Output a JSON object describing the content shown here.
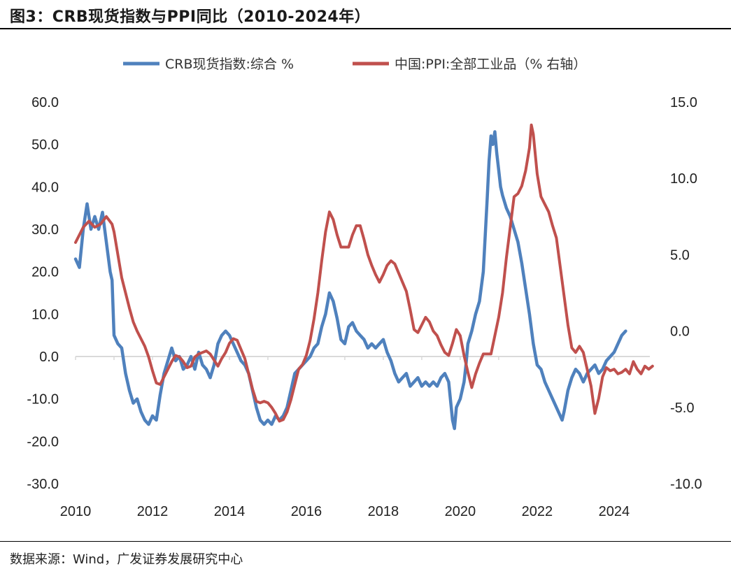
{
  "header": {
    "title": "图3：CRB现货指数与PPI同比（2010-2024年）"
  },
  "footer": {
    "source": "数据来源：Wind，广发证券发展研究中心"
  },
  "colors": {
    "crb": "#4f81bd",
    "ppi": "#c0504d",
    "axis": "#d9d9d9"
  },
  "chart_data": {
    "type": "line",
    "title": "CRB现货指数与PPI同比（2010-2024年）",
    "legend_position": "top",
    "x_ticks": [
      "2010",
      "2012",
      "2014",
      "2016",
      "2018",
      "2020",
      "2022",
      "2024"
    ],
    "y_left": {
      "range": [
        -30,
        60
      ],
      "ticks": [
        "60.0",
        "50.0",
        "40.0",
        "30.0",
        "20.0",
        "10.0",
        "0.0",
        "-10.0",
        "-20.0",
        "-30.0"
      ]
    },
    "y_right": {
      "range": [
        -10,
        15
      ],
      "ticks": [
        "15.0",
        "10.0",
        "5.0",
        "0.0",
        "-5.0",
        "-10.0"
      ]
    },
    "series": [
      {
        "name": "CRB现货指数:综合 %",
        "axis": "left",
        "color": "#4f81bd",
        "points": [
          [
            2010.0,
            23
          ],
          [
            2010.1,
            21
          ],
          [
            2010.2,
            30
          ],
          [
            2010.3,
            36
          ],
          [
            2010.4,
            30
          ],
          [
            2010.5,
            33
          ],
          [
            2010.6,
            30
          ],
          [
            2010.7,
            34
          ],
          [
            2010.8,
            27
          ],
          [
            2010.9,
            20
          ],
          [
            2010.95,
            18
          ],
          [
            2011.0,
            5
          ],
          [
            2011.1,
            3
          ],
          [
            2011.2,
            2
          ],
          [
            2011.3,
            -4
          ],
          [
            2011.4,
            -8
          ],
          [
            2011.5,
            -11
          ],
          [
            2011.6,
            -10
          ],
          [
            2011.7,
            -13
          ],
          [
            2011.8,
            -15
          ],
          [
            2011.9,
            -16
          ],
          [
            2012.0,
            -14
          ],
          [
            2012.1,
            -15
          ],
          [
            2012.2,
            -9
          ],
          [
            2012.3,
            -4
          ],
          [
            2012.4,
            -1
          ],
          [
            2012.5,
            2
          ],
          [
            2012.6,
            -1
          ],
          [
            2012.7,
            0
          ],
          [
            2012.8,
            -3
          ],
          [
            2012.9,
            -2
          ],
          [
            2013.0,
            0
          ],
          [
            2013.1,
            -3
          ],
          [
            2013.2,
            1
          ],
          [
            2013.3,
            -2
          ],
          [
            2013.4,
            -3
          ],
          [
            2013.5,
            -5
          ],
          [
            2013.6,
            -2
          ],
          [
            2013.7,
            3
          ],
          [
            2013.8,
            5
          ],
          [
            2013.9,
            6
          ],
          [
            2014.0,
            5
          ],
          [
            2014.1,
            3
          ],
          [
            2014.2,
            1
          ],
          [
            2014.3,
            -1
          ],
          [
            2014.4,
            -2
          ],
          [
            2014.5,
            -4
          ],
          [
            2014.6,
            -8
          ],
          [
            2014.7,
            -12
          ],
          [
            2014.8,
            -15
          ],
          [
            2014.9,
            -16
          ],
          [
            2015.0,
            -15
          ],
          [
            2015.1,
            -16
          ],
          [
            2015.2,
            -14
          ],
          [
            2015.3,
            -15
          ],
          [
            2015.4,
            -14
          ],
          [
            2015.5,
            -12
          ],
          [
            2015.6,
            -8
          ],
          [
            2015.7,
            -4
          ],
          [
            2015.8,
            -3
          ],
          [
            2015.9,
            -2
          ],
          [
            2016.0,
            -1
          ],
          [
            2016.1,
            0
          ],
          [
            2016.2,
            2
          ],
          [
            2016.3,
            3
          ],
          [
            2016.4,
            7
          ],
          [
            2016.5,
            10
          ],
          [
            2016.6,
            15
          ],
          [
            2016.7,
            13
          ],
          [
            2016.8,
            9
          ],
          [
            2016.9,
            4
          ],
          [
            2017.0,
            3
          ],
          [
            2017.1,
            7
          ],
          [
            2017.2,
            8
          ],
          [
            2017.3,
            6
          ],
          [
            2017.4,
            5
          ],
          [
            2017.5,
            4
          ],
          [
            2017.6,
            2
          ],
          [
            2017.7,
            3
          ],
          [
            2017.8,
            2
          ],
          [
            2017.9,
            3
          ],
          [
            2018.0,
            4
          ],
          [
            2018.1,
            1
          ],
          [
            2018.2,
            -1
          ],
          [
            2018.3,
            -4
          ],
          [
            2018.4,
            -6
          ],
          [
            2018.5,
            -5
          ],
          [
            2018.6,
            -4
          ],
          [
            2018.7,
            -7
          ],
          [
            2018.8,
            -6
          ],
          [
            2018.9,
            -5
          ],
          [
            2019.0,
            -7
          ],
          [
            2019.1,
            -6
          ],
          [
            2019.2,
            -7
          ],
          [
            2019.3,
            -6
          ],
          [
            2019.4,
            -7
          ],
          [
            2019.5,
            -5
          ],
          [
            2019.6,
            -4
          ],
          [
            2019.7,
            -6
          ],
          [
            2019.8,
            -15
          ],
          [
            2019.85,
            -17
          ],
          [
            2019.9,
            -12
          ],
          [
            2020.0,
            -10
          ],
          [
            2020.1,
            -6
          ],
          [
            2020.15,
            -2
          ],
          [
            2020.2,
            3
          ],
          [
            2020.3,
            6
          ],
          [
            2020.4,
            10
          ],
          [
            2020.5,
            13
          ],
          [
            2020.6,
            20
          ],
          [
            2020.7,
            37
          ],
          [
            2020.75,
            46
          ],
          [
            2020.8,
            52
          ],
          [
            2020.85,
            50
          ],
          [
            2020.9,
            53
          ],
          [
            2020.95,
            48
          ],
          [
            2021.0,
            44
          ],
          [
            2021.05,
            40
          ],
          [
            2021.1,
            38
          ],
          [
            2021.2,
            35
          ],
          [
            2021.3,
            33
          ],
          [
            2021.4,
            30
          ],
          [
            2021.5,
            27
          ],
          [
            2021.6,
            22
          ],
          [
            2021.7,
            16
          ],
          [
            2021.8,
            10
          ],
          [
            2021.9,
            3
          ],
          [
            2022.0,
            -2
          ],
          [
            2022.1,
            -3
          ],
          [
            2022.2,
            -6
          ],
          [
            2022.3,
            -8
          ],
          [
            2022.4,
            -10
          ],
          [
            2022.5,
            -12
          ],
          [
            2022.6,
            -14
          ],
          [
            2022.65,
            -15
          ],
          [
            2022.7,
            -13
          ],
          [
            2022.8,
            -8
          ],
          [
            2022.9,
            -5
          ],
          [
            2023.0,
            -3
          ],
          [
            2023.1,
            -4
          ],
          [
            2023.2,
            -6
          ],
          [
            2023.3,
            -4
          ],
          [
            2023.4,
            -3
          ],
          [
            2023.5,
            -2
          ],
          [
            2023.6,
            -4
          ],
          [
            2023.7,
            -3
          ],
          [
            2023.8,
            -1
          ],
          [
            2023.9,
            0
          ],
          [
            2024.0,
            1
          ],
          [
            2024.1,
            3
          ],
          [
            2024.2,
            5
          ],
          [
            2024.3,
            6
          ]
        ]
      },
      {
        "name": "中国:PPI:全部工业品（% 右轴）",
        "axis": "right",
        "color": "#c0504d",
        "points": [
          [
            2010.0,
            5.8
          ],
          [
            2010.2,
            6.8
          ],
          [
            2010.35,
            7.2
          ],
          [
            2010.5,
            6.8
          ],
          [
            2010.65,
            7.0
          ],
          [
            2010.8,
            7.5
          ],
          [
            2010.95,
            7.0
          ],
          [
            2011.0,
            6.5
          ],
          [
            2011.1,
            5.0
          ],
          [
            2011.2,
            3.5
          ],
          [
            2011.3,
            2.5
          ],
          [
            2011.4,
            1.5
          ],
          [
            2011.5,
            0.6
          ],
          [
            2011.6,
            0.0
          ],
          [
            2011.7,
            -0.5
          ],
          [
            2011.8,
            -1.0
          ],
          [
            2011.9,
            -1.7
          ],
          [
            2012.0,
            -2.6
          ],
          [
            2012.1,
            -3.4
          ],
          [
            2012.2,
            -3.5
          ],
          [
            2012.3,
            -3.0
          ],
          [
            2012.4,
            -2.5
          ],
          [
            2012.5,
            -2.0
          ],
          [
            2012.6,
            -1.6
          ],
          [
            2012.7,
            -1.7
          ],
          [
            2012.8,
            -2.0
          ],
          [
            2012.9,
            -2.4
          ],
          [
            2013.0,
            -2.3
          ],
          [
            2013.1,
            -1.7
          ],
          [
            2013.2,
            -1.5
          ],
          [
            2013.3,
            -1.4
          ],
          [
            2013.4,
            -1.3
          ],
          [
            2013.5,
            -1.5
          ],
          [
            2013.6,
            -1.9
          ],
          [
            2013.7,
            -2.3
          ],
          [
            2013.8,
            -1.8
          ],
          [
            2013.9,
            -1.4
          ],
          [
            2014.0,
            -0.8
          ],
          [
            2014.1,
            -0.5
          ],
          [
            2014.2,
            -0.6
          ],
          [
            2014.3,
            -1.2
          ],
          [
            2014.4,
            -1.8
          ],
          [
            2014.5,
            -2.8
          ],
          [
            2014.6,
            -3.8
          ],
          [
            2014.7,
            -4.6
          ],
          [
            2014.8,
            -4.7
          ],
          [
            2014.9,
            -4.6
          ],
          [
            2015.0,
            -4.7
          ],
          [
            2015.1,
            -5.0
          ],
          [
            2015.2,
            -5.4
          ],
          [
            2015.3,
            -5.9
          ],
          [
            2015.4,
            -5.8
          ],
          [
            2015.5,
            -5.3
          ],
          [
            2015.6,
            -4.5
          ],
          [
            2015.7,
            -3.5
          ],
          [
            2015.8,
            -2.5
          ],
          [
            2015.9,
            -2.2
          ],
          [
            2016.0,
            -1.6
          ],
          [
            2016.1,
            -0.6
          ],
          [
            2016.2,
            0.8
          ],
          [
            2016.3,
            2.5
          ],
          [
            2016.4,
            4.6
          ],
          [
            2016.5,
            6.5
          ],
          [
            2016.6,
            7.8
          ],
          [
            2016.7,
            7.3
          ],
          [
            2016.8,
            6.3
          ],
          [
            2016.9,
            5.5
          ],
          [
            2017.0,
            5.5
          ],
          [
            2017.1,
            5.5
          ],
          [
            2017.2,
            6.3
          ],
          [
            2017.3,
            6.9
          ],
          [
            2017.4,
            6.9
          ],
          [
            2017.5,
            6.0
          ],
          [
            2017.6,
            5.0
          ],
          [
            2017.7,
            4.3
          ],
          [
            2017.8,
            3.7
          ],
          [
            2017.9,
            3.2
          ],
          [
            2018.0,
            3.7
          ],
          [
            2018.1,
            4.3
          ],
          [
            2018.2,
            4.6
          ],
          [
            2018.3,
            4.4
          ],
          [
            2018.4,
            3.8
          ],
          [
            2018.5,
            3.2
          ],
          [
            2018.6,
            2.6
          ],
          [
            2018.7,
            1.4
          ],
          [
            2018.8,
            0.1
          ],
          [
            2018.9,
            -0.1
          ],
          [
            2019.0,
            0.4
          ],
          [
            2019.1,
            0.9
          ],
          [
            2019.2,
            0.6
          ],
          [
            2019.3,
            0.0
          ],
          [
            2019.4,
            -0.3
          ],
          [
            2019.5,
            -0.9
          ],
          [
            2019.6,
            -1.4
          ],
          [
            2019.7,
            -1.6
          ],
          [
            2019.8,
            -0.8
          ],
          [
            2019.9,
            0.1
          ],
          [
            2020.0,
            -0.3
          ],
          [
            2020.1,
            -1.6
          ],
          [
            2020.2,
            -2.7
          ],
          [
            2020.3,
            -3.7
          ],
          [
            2020.4,
            -2.8
          ],
          [
            2020.5,
            -2.1
          ],
          [
            2020.6,
            -1.5
          ],
          [
            2020.7,
            -1.5
          ],
          [
            2020.8,
            -1.5
          ],
          [
            2020.9,
            -0.3
          ],
          [
            2021.0,
            0.9
          ],
          [
            2021.1,
            2.5
          ],
          [
            2021.2,
            4.8
          ],
          [
            2021.3,
            6.8
          ],
          [
            2021.4,
            8.8
          ],
          [
            2021.5,
            9.0
          ],
          [
            2021.6,
            9.5
          ],
          [
            2021.7,
            10.5
          ],
          [
            2021.8,
            12.0
          ],
          [
            2021.85,
            13.5
          ],
          [
            2021.9,
            12.9
          ],
          [
            2022.0,
            10.3
          ],
          [
            2022.1,
            8.8
          ],
          [
            2022.2,
            8.3
          ],
          [
            2022.3,
            7.8
          ],
          [
            2022.4,
            6.9
          ],
          [
            2022.5,
            6.1
          ],
          [
            2022.6,
            4.2
          ],
          [
            2022.7,
            2.3
          ],
          [
            2022.8,
            0.4
          ],
          [
            2022.9,
            -1.1
          ],
          [
            2023.0,
            -1.4
          ],
          [
            2023.1,
            -1.0
          ],
          [
            2023.2,
            -1.4
          ],
          [
            2023.3,
            -2.5
          ],
          [
            2023.4,
            -3.6
          ],
          [
            2023.5,
            -5.4
          ],
          [
            2023.6,
            -4.4
          ],
          [
            2023.7,
            -3.0
          ],
          [
            2023.8,
            -2.4
          ],
          [
            2023.9,
            -2.6
          ],
          [
            2024.0,
            -2.5
          ],
          [
            2024.1,
            -2.8
          ],
          [
            2024.2,
            -2.7
          ],
          [
            2024.3,
            -2.5
          ],
          [
            2024.4,
            -2.8
          ],
          [
            2024.5,
            -2.0
          ],
          [
            2024.6,
            -2.5
          ],
          [
            2024.7,
            -2.8
          ],
          [
            2024.8,
            -2.3
          ],
          [
            2024.9,
            -2.5
          ],
          [
            2025.0,
            -2.3
          ]
        ]
      }
    ]
  }
}
